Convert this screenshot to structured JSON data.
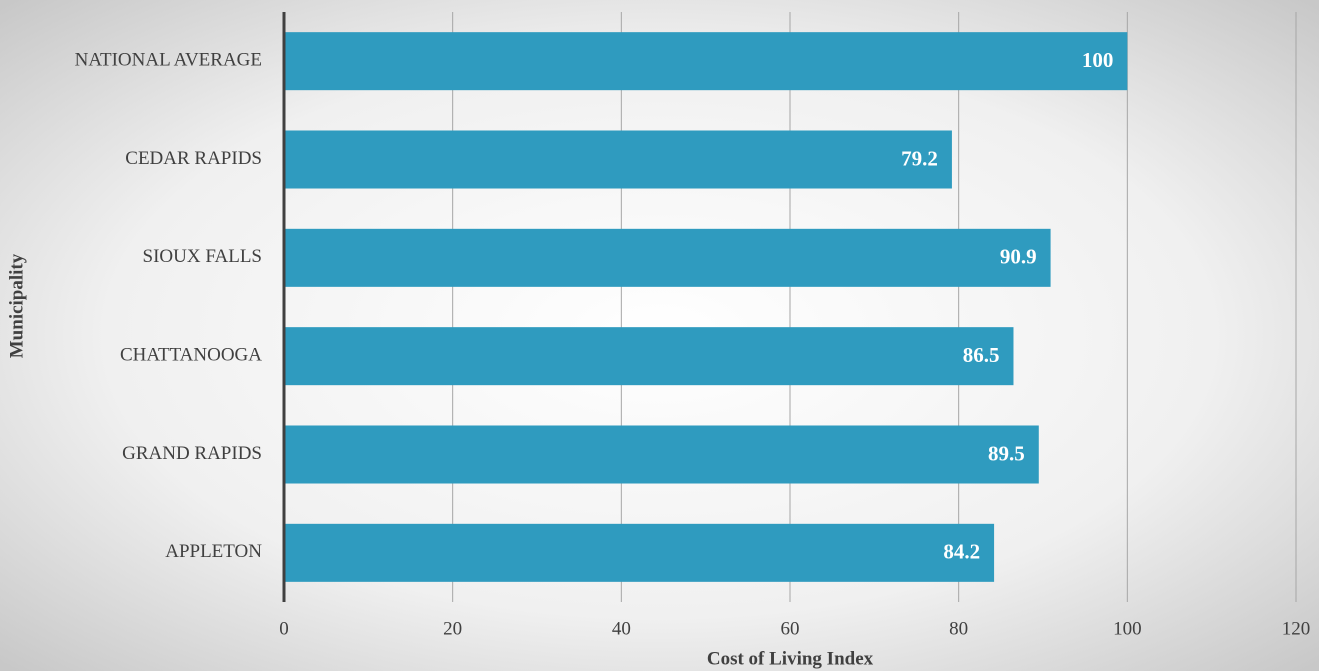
{
  "chart_data": {
    "type": "bar",
    "orientation": "horizontal",
    "x_label": "Cost of Living Index",
    "y_label": "Municipality",
    "categories": [
      "NATIONAL AVERAGE",
      "CEDAR RAPIDS",
      "SIOUX FALLS",
      "CHATTANOOGA",
      "GRAND RAPIDS",
      "APPLETON"
    ],
    "values": [
      100,
      79.2,
      90.9,
      86.5,
      89.5,
      84.2
    ],
    "color": "#2f9bbf",
    "xlim": [
      0,
      120
    ],
    "xticks": [
      0,
      20,
      40,
      60,
      80,
      100,
      120
    ],
    "grid": true
  }
}
